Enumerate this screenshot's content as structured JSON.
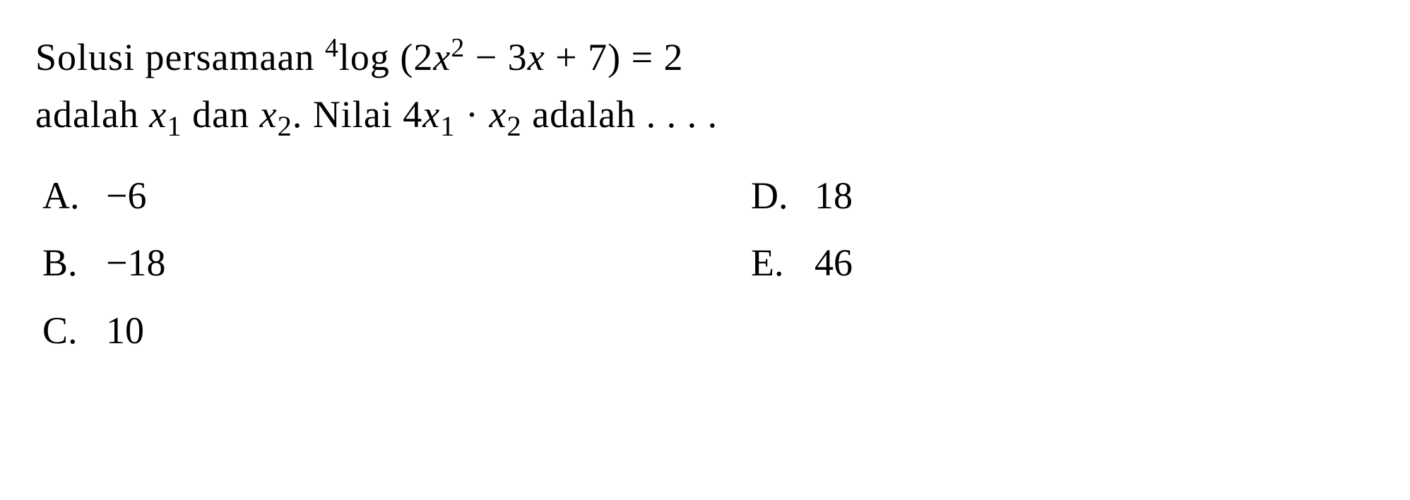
{
  "question": {
    "line1_part1": "Solusi persamaan ",
    "log_base": "4",
    "log_text": "log (2",
    "var_x": "x",
    "exp_2": "2",
    "line1_part2": " − 3",
    "line1_part3": " + 7) = 2",
    "line2_part1": "adalah ",
    "sub_1": "1",
    "line2_part2": " dan ",
    "sub_2": "2",
    "line2_part3": ". Nilai 4",
    "line2_part4": " · ",
    "line2_part5": " adalah . . . ."
  },
  "options": {
    "a": {
      "letter": "A.",
      "value": "−6"
    },
    "b": {
      "letter": "B.",
      "value": "−18"
    },
    "c": {
      "letter": "C.",
      "value": "10"
    },
    "d": {
      "letter": "D.",
      "value": "18"
    },
    "e": {
      "letter": "E.",
      "value": "46"
    }
  },
  "styling": {
    "background_color": "#ffffff",
    "text_color": "#000000",
    "font_family": "Times New Roman",
    "question_fontsize": 54,
    "option_fontsize": 54
  }
}
